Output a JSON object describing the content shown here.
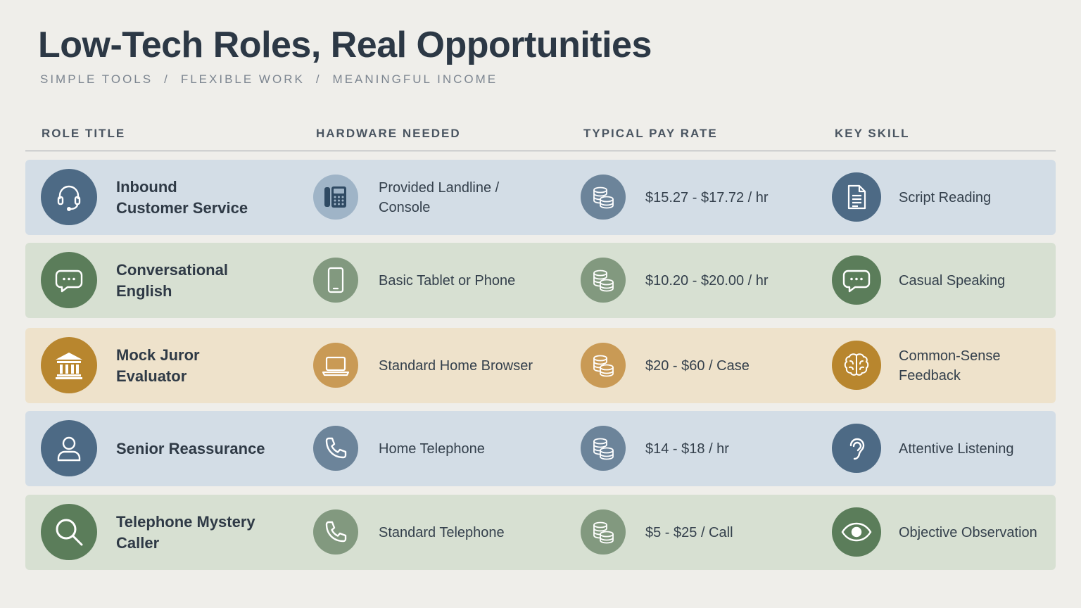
{
  "title": "Low-Tech Roles, Real Opportunities",
  "subtitle": [
    "SIMPLE TOOLS",
    "FLEXIBLE WORK",
    "MEANINGFUL INCOME"
  ],
  "subtitle_sep": "/",
  "columns": [
    "ROLE TITLE",
    "HARDWARE NEEDED",
    "TYPICAL PAY RATE",
    "KEY SKILL"
  ],
  "rows": [
    {
      "role": "Inbound\nCustomer Service",
      "role_icon": "headset-icon",
      "hardware": "Provided Landline /\nConsole",
      "hardware_icon": "desk-phone-icon",
      "pay": "$15.27 - $17.72 / hr",
      "pay_icon": "coins-icon",
      "skill": "Script Reading",
      "skill_icon": "document-icon",
      "theme": "blue"
    },
    {
      "role": "Conversational\nEnglish",
      "role_icon": "chat-bubble-icon",
      "hardware": "Basic Tablet or Phone",
      "hardware_icon": "tablet-icon",
      "pay": "$10.20 - $20.00 / hr",
      "pay_icon": "coins-icon",
      "skill": "Casual Speaking",
      "skill_icon": "chat-bubble-icon",
      "theme": "green"
    },
    {
      "role": "Mock Juror\nEvaluator",
      "role_icon": "courthouse-icon",
      "hardware": "Standard Home Browser",
      "hardware_icon": "laptop-icon",
      "pay": "$20 - $60 / Case",
      "pay_icon": "coins-icon",
      "skill": "Common-Sense\nFeedback",
      "skill_icon": "brain-icon",
      "theme": "gold"
    },
    {
      "role": "Senior Reassurance",
      "role_icon": "person-icon",
      "hardware": "Home Telephone",
      "hardware_icon": "phone-handset-icon",
      "pay": "$14 - $18 / hr",
      "pay_icon": "coins-icon",
      "skill": "Attentive Listening",
      "skill_icon": "ear-icon",
      "theme": "blue"
    },
    {
      "role": "Telephone Mystery\nCaller",
      "role_icon": "magnifier-icon",
      "hardware": "Standard Telephone",
      "hardware_icon": "phone-handset-icon",
      "pay": "$5 - $25 / Call",
      "pay_icon": "coins-icon",
      "skill": "Objective Observation",
      "skill_icon": "eye-icon",
      "theme": "green"
    }
  ],
  "colors": {
    "background": "#efeeea",
    "blue_row": "#d3dde6",
    "green_row": "#d7e0d2",
    "gold_row": "#eee2cb",
    "blue_icon": "#4d6a85",
    "green_icon": "#5b7d5a",
    "gold_icon": "#b8862e"
  }
}
